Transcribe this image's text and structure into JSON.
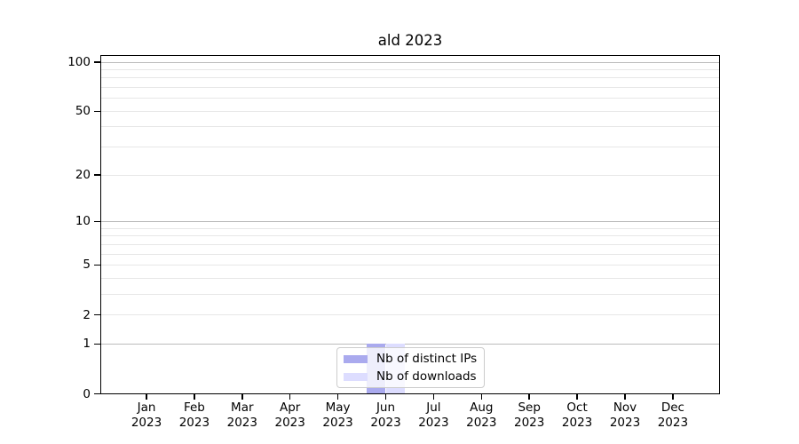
{
  "chart_data": {
    "type": "bar",
    "title": "ald 2023",
    "categories": [
      "Jan 2023",
      "Feb 2023",
      "Mar 2023",
      "Apr 2023",
      "May 2023",
      "Jun 2023",
      "Jul 2023",
      "Aug 2023",
      "Sep 2023",
      "Oct 2023",
      "Nov 2023",
      "Dec 2023"
    ],
    "series": [
      {
        "name": "Nb of distinct IPs",
        "color": "#aaaaee",
        "values": [
          0,
          0,
          0,
          0,
          0,
          1,
          0,
          0,
          0,
          0,
          0,
          0
        ]
      },
      {
        "name": "Nb of downloads",
        "color": "#ddddff",
        "values": [
          0,
          0,
          0,
          0,
          0,
          1,
          0,
          0,
          0,
          0,
          0,
          0
        ]
      }
    ],
    "y_axis": {
      "scale": "log10(1+y)",
      "tick_values": [
        0,
        1,
        2,
        5,
        10,
        20,
        50,
        100
      ],
      "tick_labels": [
        "0",
        "1",
        "2",
        "5",
        "10",
        "20",
        "50",
        "100"
      ],
      "decade_grid_values": [
        1,
        10,
        100
      ],
      "minor_grid_values": [
        2,
        3,
        4,
        5,
        6,
        7,
        8,
        9,
        20,
        30,
        40,
        50,
        60,
        70,
        80,
        90
      ],
      "range": [
        0,
        110
      ]
    },
    "legend": {
      "position": "lower center",
      "entries": [
        "Nb of distinct IPs",
        "Nb of downloads"
      ]
    },
    "style": {
      "background": "#ffffff",
      "spine_color": "#000000",
      "grid_major_color": "#bbbbbb",
      "grid_minor_color": "#e7e7e7",
      "legend_border_color": "#cccccc",
      "text_color": "#000000"
    }
  }
}
